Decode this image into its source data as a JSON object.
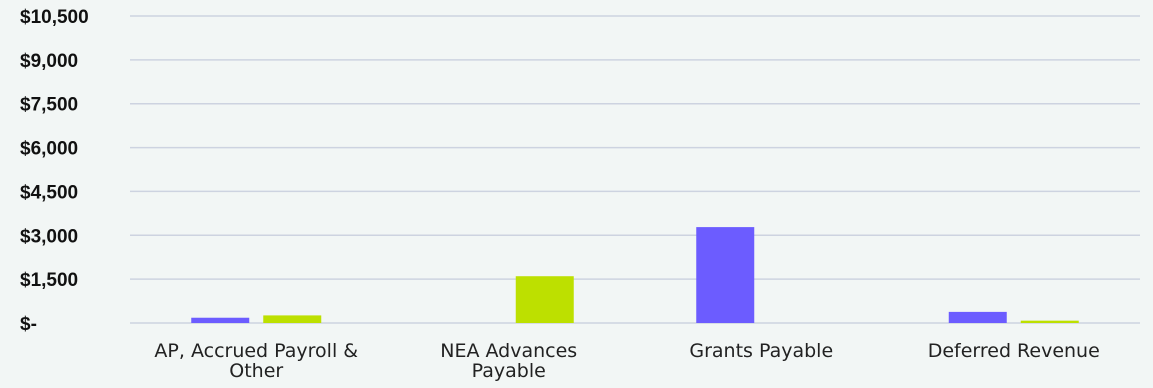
{
  "chart_data": {
    "type": "bar",
    "title": "",
    "xlabel": "",
    "ylabel": "",
    "ylim": [
      0,
      10500
    ],
    "grid": true,
    "legend": "none",
    "y_ticks": [
      {
        "value": 0,
        "label": "$-"
      },
      {
        "value": 1500,
        "label": "$1,500"
      },
      {
        "value": 3000,
        "label": "$3,000"
      },
      {
        "value": 4500,
        "label": "$4,500"
      },
      {
        "value": 6000,
        "label": "$6,000"
      },
      {
        "value": 7500,
        "label": "$7,500"
      },
      {
        "value": 9000,
        "label": "$9,000"
      },
      {
        "value": 10500,
        "label": "$10,500"
      }
    ],
    "categories": [
      [
        "AP, Accrued Payroll &",
        "Other"
      ],
      [
        "NEA Advances",
        "Payable"
      ],
      [
        "Grants Payable"
      ],
      [
        "Deferred Revenue"
      ]
    ],
    "series": [
      {
        "color": "#6c5cff",
        "values": [
          180,
          0,
          3280,
          380
        ]
      },
      {
        "color": "#bde000",
        "values": [
          260,
          1600,
          0,
          80
        ]
      }
    ]
  }
}
